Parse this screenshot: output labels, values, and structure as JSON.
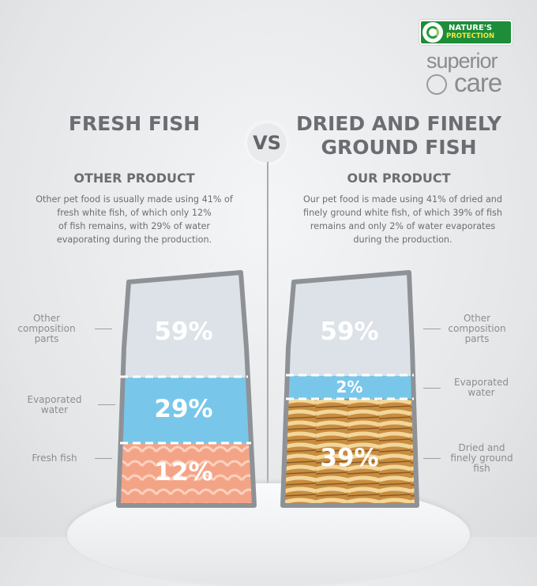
{
  "brand": {
    "name_line1": "NATURE'S",
    "name_line2": "PROTECTION",
    "line_superior": "superior",
    "line_care": "care"
  },
  "header": {
    "left_title": "FRESH FISH",
    "vs": "VS",
    "right_title_line1": "DRIED AND FINELY",
    "right_title_line2": "GROUND FISH"
  },
  "left": {
    "subtitle": "OTHER PRODUCT",
    "description": [
      "Other pet food is usually made using 41% of",
      "fresh white fish, of which only 12%",
      "of fish remains, with 29% of water",
      "evaporating during the production."
    ],
    "labels": {
      "other": [
        "Other",
        "composition",
        "parts"
      ],
      "water": [
        "Evaporated",
        "water"
      ],
      "fish": [
        "Fresh fish"
      ]
    },
    "values": {
      "other": "59%",
      "water": "29%",
      "fish": "12%"
    }
  },
  "right": {
    "subtitle": "OUR PRODUCT",
    "description": [
      "Our pet food is made using 41% of dried and",
      "finely ground white fish, of which 39% of fish",
      "remains and only 2% of water evaporates",
      "during the production."
    ],
    "labels": {
      "other": [
        "Other",
        "composition",
        "parts"
      ],
      "water": [
        "Evaporated",
        "water"
      ],
      "fish": [
        "Dried and",
        "finely ground",
        "fish"
      ]
    },
    "values": {
      "other": "59%",
      "water": "2%",
      "fish": "39%"
    }
  },
  "colors": {
    "bag_fill": "#dde2e8",
    "bag_outline": "#8e9297",
    "water": "#78c7ea",
    "salmon": "#f4a486",
    "dried_fish": "#d9a85a",
    "brand_green": "#1d8d3a"
  }
}
